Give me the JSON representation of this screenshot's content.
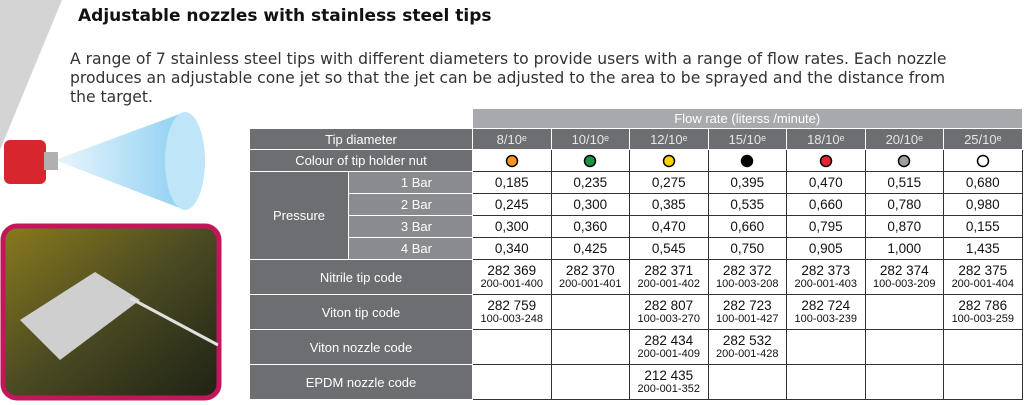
{
  "header": {
    "title": "Adjustable nozzles with stainless steel tips",
    "description": "A range of 7 stainless steel tips with different diameters to provide users with a range of flow rates. Each nozzle produces an adjustable cone jet so that the jet can be adjusted to the area to be sprayed and the distance from the target."
  },
  "table": {
    "flow_rate_header": "Flow rate (literss /minute)",
    "tip_diameter_label": "Tip diameter",
    "tip_diameters": [
      "8/10ᵉ",
      "10/10ᵉ",
      "12/10ᵉ",
      "15/10ᵉ",
      "18/10ᵉ",
      "20/10ᵉ",
      "25/10ᵉ"
    ],
    "nut_colour_label": "Colour of tip holder nut",
    "nut_colors": [
      "#f7941d",
      "#1a9641",
      "#ffd200",
      "#000000",
      "#e3262b",
      "#9d9fa2",
      "#ffffff"
    ],
    "pressure_label": "Pressure",
    "pressure_rows": [
      {
        "label": "1 Bar",
        "values": [
          "0,185",
          "0,235",
          "0,275",
          "0,395",
          "0,470",
          "0,515",
          "0,680"
        ]
      },
      {
        "label": "2 Bar",
        "values": [
          "0,245",
          "0,300",
          "0,385",
          "0,535",
          "0,660",
          "0,780",
          "0,980"
        ]
      },
      {
        "label": "3 Bar",
        "values": [
          "0,300",
          "0,360",
          "0,470",
          "0,660",
          "0,795",
          "0,870",
          "0,155"
        ]
      },
      {
        "label": "4 Bar",
        "values": [
          "0,340",
          "0,425",
          "0,545",
          "0,750",
          "0,905",
          "1,000",
          "1,435"
        ]
      }
    ],
    "code_rows": [
      {
        "label": "Nitrile tip code",
        "cells": [
          [
            "282 369",
            "200-001-400"
          ],
          [
            "282 370",
            "200-001-401"
          ],
          [
            "282 371",
            "200-001-402"
          ],
          [
            "282 372",
            "100-003-208"
          ],
          [
            "282 373",
            "200-001-403"
          ],
          [
            "282 374",
            "100-003-209"
          ],
          [
            "282 375",
            "200-001-404"
          ]
        ]
      },
      {
        "label": "Viton tip code",
        "cells": [
          [
            "282 759",
            "100-003-248"
          ],
          null,
          [
            "282 807",
            "100-003-270"
          ],
          [
            "282 723",
            "100-001-427"
          ],
          [
            "282 724",
            "100-003-239"
          ],
          null,
          [
            "282 786",
            "100-003-259"
          ]
        ]
      },
      {
        "label": "Viton nozzle code",
        "cells": [
          null,
          null,
          [
            "282 434",
            "200-001-409"
          ],
          [
            "282 532",
            "200-001-428"
          ],
          null,
          null,
          null
        ]
      },
      {
        "label": "EPDM nozzle code",
        "cells": [
          null,
          null,
          [
            "212 435",
            "200-001-352"
          ],
          null,
          null,
          null,
          null
        ]
      }
    ]
  }
}
